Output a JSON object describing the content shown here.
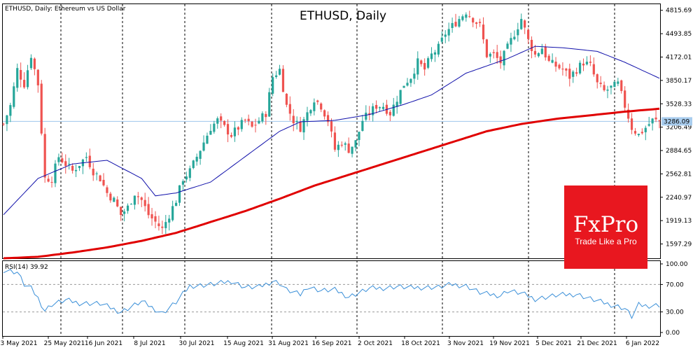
{
  "chart_title": "ETHUSD, Daily",
  "main_label": "ETHUSD, Daily:  Ethereum vs US Dollar",
  "rsi_label": "RSI(14) 39.92",
  "current_price_label": "3286.09",
  "colors": {
    "bull": "#26a69a",
    "bear": "#ef5350",
    "ma_fast": "#1010aa",
    "ma_slow": "#e00000",
    "rsi_line": "#3a8fd8",
    "price_line": "#9ec6ec",
    "logo": "#e8171f"
  },
  "logo": {
    "brand": "FxPro",
    "tagline": "Trade Like a Pro"
  },
  "chart_data": {
    "type": "candlestick",
    "price_axis": {
      "ticks": [
        "4815.69",
        "4493.85",
        "4172.01",
        "3850.17",
        "3528.33",
        "3206.49",
        "2884.65",
        "2562.81",
        "2240.97",
        "1919.13",
        "1597.29"
      ],
      "range": [
        1400,
        4900
      ]
    },
    "rsi_axis": {
      "ticks": [
        "100.00",
        "70.00",
        "30.00",
        "0.00"
      ],
      "levels": [
        70,
        30
      ],
      "range": [
        0,
        100
      ]
    },
    "x_labels": [
      "3 May 2021",
      "25 May 2021",
      "16 Jun 2021",
      "8 Jul 2021",
      "30 Jul 2021",
      "15 Aug 2021",
      "31 Aug 2021",
      "16 Sep 2021",
      "2 Oct 2021",
      "18 Oct 2021",
      "3 Nov 2021",
      "19 Nov 2021",
      "5 Dec 2021",
      "21 Dec 2021",
      "6 Jan 2022"
    ],
    "price_path": [
      [
        0,
        3250
      ],
      [
        2,
        3500
      ],
      [
        4,
        4000
      ],
      [
        6,
        3800
      ],
      [
        8,
        4200
      ],
      [
        10,
        3800
      ],
      [
        12,
        2500
      ],
      [
        14,
        2500
      ],
      [
        16,
        2800
      ],
      [
        18,
        2700
      ],
      [
        20,
        2600
      ],
      [
        22,
        2700
      ],
      [
        24,
        2800
      ],
      [
        26,
        2600
      ],
      [
        28,
        2500
      ],
      [
        30,
        2300
      ],
      [
        32,
        2200
      ],
      [
        34,
        2000
      ],
      [
        36,
        2100
      ],
      [
        38,
        2300
      ],
      [
        40,
        2200
      ],
      [
        42,
        2000
      ],
      [
        44,
        1900
      ],
      [
        46,
        1800
      ],
      [
        48,
        2000
      ],
      [
        50,
        2200
      ],
      [
        52,
        2500
      ],
      [
        54,
        2600
      ],
      [
        56,
        2800
      ],
      [
        58,
        3000
      ],
      [
        60,
        3200
      ],
      [
        62,
        3300
      ],
      [
        64,
        3200
      ],
      [
        66,
        3100
      ],
      [
        68,
        3200
      ],
      [
        70,
        3300
      ],
      [
        72,
        3200
      ],
      [
        74,
        3300
      ],
      [
        76,
        3400
      ],
      [
        78,
        3900
      ],
      [
        80,
        4000
      ],
      [
        82,
        3500
      ],
      [
        84,
        3300
      ],
      [
        86,
        3200
      ],
      [
        88,
        3400
      ],
      [
        90,
        3600
      ],
      [
        92,
        3500
      ],
      [
        94,
        3300
      ],
      [
        96,
        2900
      ],
      [
        98,
        3000
      ],
      [
        100,
        2900
      ],
      [
        102,
        3000
      ],
      [
        104,
        3300
      ],
      [
        106,
        3400
      ],
      [
        108,
        3500
      ],
      [
        110,
        3500
      ],
      [
        112,
        3400
      ],
      [
        114,
        3600
      ],
      [
        116,
        3800
      ],
      [
        118,
        3900
      ],
      [
        120,
        4100
      ],
      [
        122,
        4000
      ],
      [
        124,
        4200
      ],
      [
        126,
        4300
      ],
      [
        128,
        4500
      ],
      [
        130,
        4600
      ],
      [
        132,
        4700
      ],
      [
        134,
        4800
      ],
      [
        136,
        4700
      ],
      [
        138,
        4600
      ],
      [
        140,
        4200
      ],
      [
        142,
        4200
      ],
      [
        144,
        4100
      ],
      [
        146,
        4300
      ],
      [
        148,
        4500
      ],
      [
        150,
        4700
      ],
      [
        152,
        4400
      ],
      [
        154,
        4200
      ],
      [
        156,
        4300
      ],
      [
        158,
        4100
      ],
      [
        160,
        4050
      ],
      [
        162,
        4000
      ],
      [
        164,
        3900
      ],
      [
        166,
        4000
      ],
      [
        168,
        4100
      ],
      [
        170,
        4050
      ],
      [
        172,
        3800
      ],
      [
        174,
        3700
      ],
      [
        176,
        3750
      ],
      [
        178,
        3800
      ],
      [
        180,
        3500
      ],
      [
        182,
        3200
      ],
      [
        184,
        3100
      ],
      [
        186,
        3200
      ],
      [
        188,
        3300
      ],
      [
        190,
        3286.09
      ]
    ],
    "ma_fast": [
      [
        0,
        2000
      ],
      [
        10,
        2500
      ],
      [
        20,
        2700
      ],
      [
        30,
        2750
      ],
      [
        40,
        2500
      ],
      [
        44,
        2260
      ],
      [
        50,
        2300
      ],
      [
        60,
        2450
      ],
      [
        70,
        2800
      ],
      [
        80,
        3150
      ],
      [
        86,
        3280
      ],
      [
        96,
        3300
      ],
      [
        106,
        3380
      ],
      [
        116,
        3520
      ],
      [
        124,
        3650
      ],
      [
        134,
        3950
      ],
      [
        140,
        4050
      ],
      [
        146,
        4150
      ],
      [
        154,
        4320
      ],
      [
        162,
        4300
      ],
      [
        172,
        4250
      ],
      [
        180,
        4100
      ],
      [
        190,
        3880
      ]
    ],
    "ma_slow": [
      [
        0,
        1400
      ],
      [
        10,
        1420
      ],
      [
        20,
        1480
      ],
      [
        30,
        1550
      ],
      [
        40,
        1640
      ],
      [
        50,
        1750
      ],
      [
        60,
        1900
      ],
      [
        70,
        2050
      ],
      [
        80,
        2220
      ],
      [
        90,
        2400
      ],
      [
        100,
        2550
      ],
      [
        110,
        2700
      ],
      [
        120,
        2850
      ],
      [
        130,
        3000
      ],
      [
        140,
        3150
      ],
      [
        150,
        3250
      ],
      [
        160,
        3320
      ],
      [
        170,
        3370
      ],
      [
        180,
        3420
      ],
      [
        190,
        3460
      ]
    ],
    "rsi": [
      [
        0,
        91
      ],
      [
        4,
        88
      ],
      [
        6,
        70
      ],
      [
        8,
        64
      ],
      [
        10,
        50
      ],
      [
        12,
        32
      ],
      [
        14,
        41
      ],
      [
        18,
        47
      ],
      [
        22,
        43
      ],
      [
        28,
        42
      ],
      [
        34,
        30
      ],
      [
        40,
        45
      ],
      [
        46,
        28
      ],
      [
        50,
        44
      ],
      [
        54,
        68
      ],
      [
        58,
        69
      ],
      [
        62,
        71
      ],
      [
        66,
        75
      ],
      [
        70,
        66
      ],
      [
        74,
        66
      ],
      [
        78,
        75
      ],
      [
        80,
        72
      ],
      [
        82,
        62
      ],
      [
        86,
        55
      ],
      [
        88,
        67
      ],
      [
        92,
        61
      ],
      [
        96,
        62
      ],
      [
        100,
        52
      ],
      [
        102,
        56
      ],
      [
        106,
        64
      ],
      [
        110,
        65
      ],
      [
        114,
        67
      ],
      [
        118,
        65
      ],
      [
        122,
        66
      ],
      [
        126,
        66
      ],
      [
        130,
        70
      ],
      [
        134,
        68
      ],
      [
        138,
        58
      ],
      [
        140,
        56
      ],
      [
        144,
        54
      ],
      [
        146,
        61
      ],
      [
        150,
        57
      ],
      [
        154,
        49
      ],
      [
        160,
        54
      ],
      [
        166,
        56
      ],
      [
        170,
        49
      ],
      [
        174,
        43
      ],
      [
        178,
        38
      ],
      [
        180,
        35
      ],
      [
        182,
        23
      ],
      [
        184,
        40
      ],
      [
        186,
        39
      ],
      [
        190,
        40
      ]
    ]
  }
}
